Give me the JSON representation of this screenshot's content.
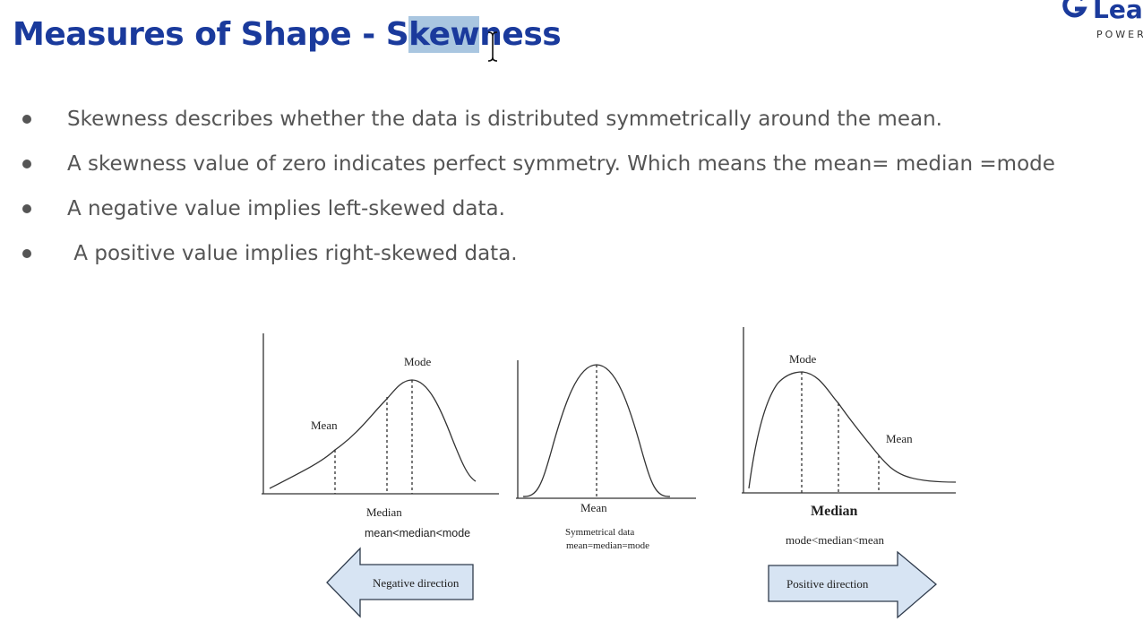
{
  "header": {
    "title_before_selection": "Measures of Shape - S",
    "title_selected": "kew",
    "title_after_selection": "ness",
    "logo_name": "Lear",
    "logo_tagline": "POWER"
  },
  "bullets": [
    "Skewness describes whether the data is distributed symmetrically around the mean.",
    "A skewness value of zero indicates perfect symmetry.  Which means the mean= median =mode",
    "A negative value implies left-skewed data.",
    " A positive value implies right-skewed data."
  ],
  "figure": {
    "left_plot": {
      "mode_label": "Mode",
      "mean_label": "Mean",
      "median_label": "Median",
      "relation": "mean<median<mode",
      "arrow_label": "Negative direction"
    },
    "center_plot": {
      "mean_label": "Mean",
      "caption_line1": "Symmetrical data",
      "caption_line2": "mean=median=mode"
    },
    "right_plot": {
      "mode_label": "Mode",
      "mean_label": "Mean",
      "median_label": "Median",
      "relation": "mode<median<mean",
      "arrow_label": "Positive direction"
    }
  },
  "colors": {
    "title": "#1a3a9c",
    "selection": "#a9c6e0",
    "bullet_text": "#555555",
    "arrow_fill": "#d7e4f3",
    "arrow_stroke": "#2f3b4c"
  },
  "icons": {
    "logo": "logo-g-icon",
    "cursor": "text-cursor-icon",
    "bullet": "bullet-dot-icon"
  }
}
